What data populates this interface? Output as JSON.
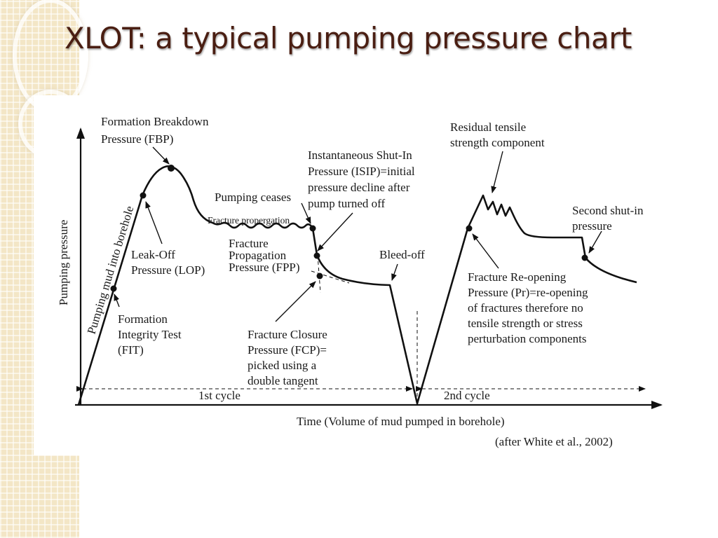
{
  "slide": {
    "title": "XLOT: a typical pumping pressure chart",
    "citation": "(after White et al., 2002)"
  },
  "diagram": {
    "y_axis_label": "Pumping pressure",
    "x_axis_label": "Time (Volume of mud pumped in borehole)",
    "cycle1_label": "1st cycle",
    "cycle2_label": "2nd cycle",
    "pumping_mud_label": "Pumping mud into borehole",
    "fracture_propagation_label": "Fracture propergation",
    "annotations": {
      "fbp": [
        "Formation Breakdown",
        "Pressure (FBP)"
      ],
      "lop": [
        "Leak-Off",
        "Pressure (LOP)"
      ],
      "fit": [
        "Formation",
        "Integrity Test",
        "(FIT)"
      ],
      "pumping_ceases": [
        "Pumping ceases"
      ],
      "isip": [
        "Instantaneous Shut-In",
        "Pressure (ISIP)=initial",
        "pressure decline after",
        "pump turned off"
      ],
      "fpp": [
        "Fracture",
        "Propagation",
        "Pressure (FPP)"
      ],
      "fcp": [
        "Fracture Closure",
        "Pressure (FCP)=",
        "picked using a",
        "double tangent"
      ],
      "bleed_off": [
        "Bleed-off"
      ],
      "residual": [
        "Residual tensile",
        "strength component"
      ],
      "second_shut_in": [
        "Second shut-in",
        "pressure"
      ],
      "reopening": [
        "Fracture Re-opening",
        "Pressure (Pr)=re-opening",
        "of fractures therefore no",
        "tensile strength or stress",
        "perturbation components"
      ]
    }
  }
}
